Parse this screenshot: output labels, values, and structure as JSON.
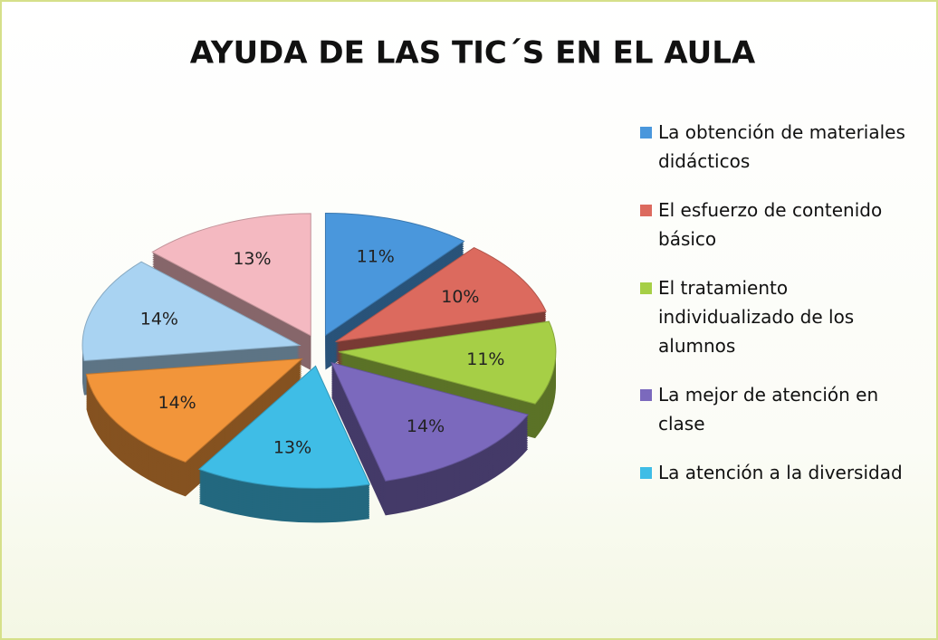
{
  "chart_data": {
    "type": "pie",
    "title": "AYUDA DE LAS TIC´S EN EL AULA",
    "categories": [
      "La obtención de materiales didácticos",
      "El esfuerzo de contenido básico",
      "El tratamiento individualizado de los alumnos",
      "La mejor de atención en clase",
      "La atención a la diversidad",
      null,
      null,
      null
    ],
    "values": [
      11,
      10,
      11,
      14,
      13,
      14,
      14,
      13
    ],
    "value_labels": [
      "11%",
      "10%",
      "11%",
      "14%",
      "13%",
      "14%",
      "14%",
      "13%"
    ],
    "colors": [
      "#4a97dc",
      "#dc6a5e",
      "#a6cf46",
      "#7b69bd",
      "#3fbde6",
      "#f2953a",
      "#a9d3f2",
      "#f4b9c1"
    ]
  }
}
